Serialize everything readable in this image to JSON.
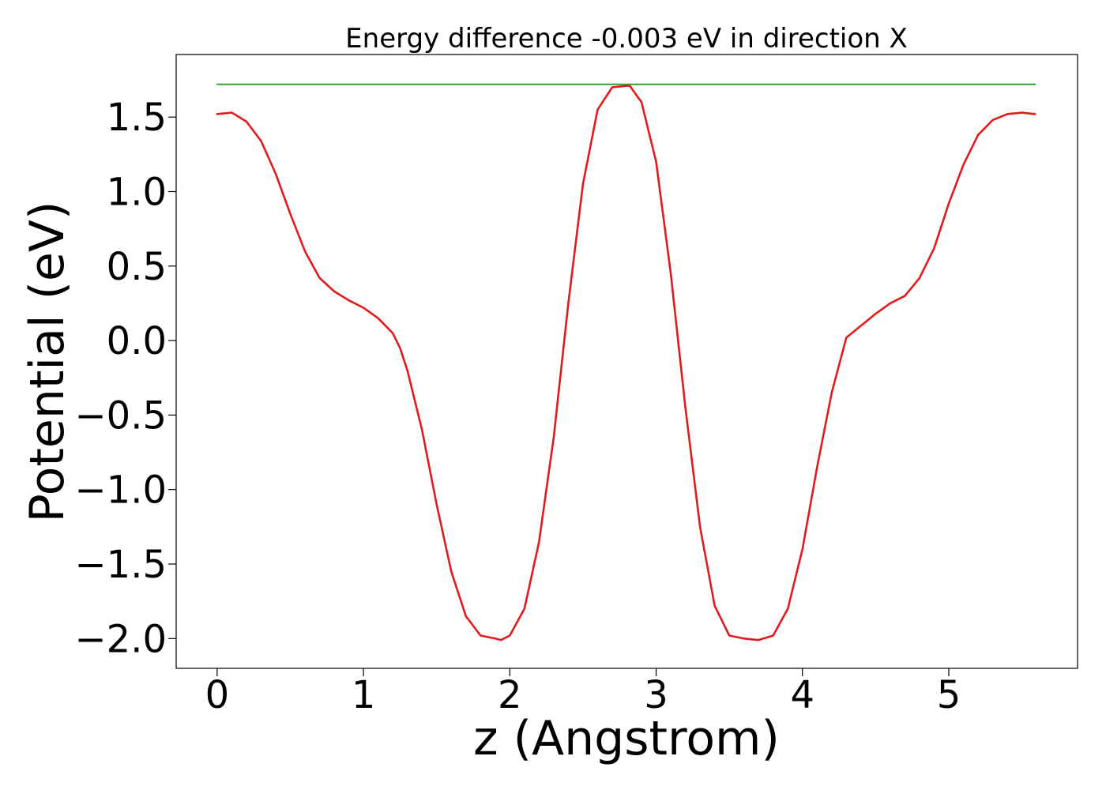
{
  "chart_data": {
    "type": "line",
    "title": "Energy difference -0.003 eV in direction X",
    "xlabel": "z (Angstrom)",
    "ylabel": "Potential (eV)",
    "xlim": [
      -0.28,
      5.88
    ],
    "ylim": [
      -2.2,
      1.92
    ],
    "x_ticks": [
      {
        "value": 0,
        "label": "0"
      },
      {
        "value": 1,
        "label": "1"
      },
      {
        "value": 2,
        "label": "2"
      },
      {
        "value": 3,
        "label": "3"
      },
      {
        "value": 4,
        "label": "4"
      },
      {
        "value": 5,
        "label": "5"
      }
    ],
    "y_ticks": [
      {
        "value": -2.0,
        "label": "−2.0"
      },
      {
        "value": -1.5,
        "label": "−1.5"
      },
      {
        "value": -1.0,
        "label": "−1.0"
      },
      {
        "value": -0.5,
        "label": "−0.5"
      },
      {
        "value": 0.0,
        "label": "0.0"
      },
      {
        "value": 0.5,
        "label": "0.5"
      },
      {
        "value": 1.0,
        "label": "1.0"
      },
      {
        "value": 1.5,
        "label": "1.5"
      }
    ],
    "grid": false,
    "legend": "none",
    "series": [
      {
        "color": "#e31a1c",
        "x": [
          0.0,
          0.1,
          0.2,
          0.3,
          0.4,
          0.5,
          0.6,
          0.7,
          0.8,
          0.9,
          1.0,
          1.1,
          1.2,
          1.25,
          1.3,
          1.4,
          1.5,
          1.6,
          1.7,
          1.8,
          1.9,
          1.94,
          2.0,
          2.1,
          2.2,
          2.3,
          2.4,
          2.5,
          2.6,
          2.7,
          2.8,
          2.82,
          2.9,
          3.0,
          3.1,
          3.2,
          3.3,
          3.4,
          3.5,
          3.6,
          3.7,
          3.8,
          3.9,
          4.0,
          4.1,
          4.2,
          4.3,
          4.4,
          4.5,
          4.6,
          4.7,
          4.8,
          4.9,
          5.0,
          5.1,
          5.2,
          5.3,
          5.4,
          5.5,
          5.59
        ],
        "y": [
          1.52,
          1.53,
          1.47,
          1.34,
          1.12,
          0.85,
          0.6,
          0.42,
          0.33,
          0.27,
          0.22,
          0.15,
          0.05,
          -0.05,
          -0.2,
          -0.6,
          -1.1,
          -1.55,
          -1.85,
          -1.98,
          -2.0,
          -2.01,
          -1.98,
          -1.8,
          -1.35,
          -0.65,
          0.25,
          1.05,
          1.55,
          1.7,
          1.71,
          1.71,
          1.6,
          1.2,
          0.45,
          -0.45,
          -1.25,
          -1.78,
          -1.98,
          -2.0,
          -2.01,
          -1.98,
          -1.8,
          -1.4,
          -0.85,
          -0.35,
          0.02,
          0.1,
          0.18,
          0.25,
          0.3,
          0.42,
          0.62,
          0.92,
          1.18,
          1.38,
          1.48,
          1.52,
          1.53,
          1.52
        ]
      },
      {
        "color": "#33a02c",
        "x": [
          0.0,
          5.59
        ],
        "y": [
          1.72,
          1.72
        ]
      }
    ]
  }
}
